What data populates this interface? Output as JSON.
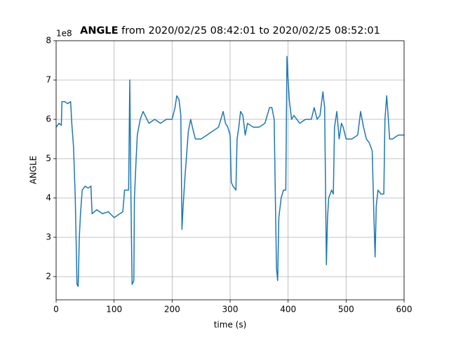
{
  "chart_data": {
    "type": "line",
    "title_emphasis": "ANGLE",
    "title": "from 2020/02/25 08:42:01 to 2020/02/25 08:52:01",
    "xlabel": "time (s)",
    "ylabel": "ANGLE",
    "y_offset_label": "1e8",
    "x": [
      0,
      5,
      9,
      10,
      15,
      20,
      25,
      27,
      30,
      33,
      36,
      38,
      40,
      42,
      45,
      50,
      55,
      60,
      62,
      70,
      80,
      90,
      100,
      110,
      115,
      118,
      125,
      127,
      129,
      131,
      134,
      135,
      138,
      140,
      145,
      150,
      160,
      170,
      180,
      190,
      200,
      205,
      208,
      212,
      215,
      217,
      219,
      222,
      225,
      228,
      232,
      235,
      240,
      250,
      260,
      270,
      280,
      288,
      292,
      296,
      300,
      302,
      305,
      310,
      312,
      315,
      318,
      322,
      326,
      330,
      340,
      350,
      360,
      368,
      372,
      376,
      378,
      380,
      382,
      384,
      388,
      392,
      396,
      398,
      400,
      402,
      406,
      410,
      415,
      420,
      430,
      440,
      445,
      450,
      455,
      460,
      463,
      466,
      468,
      470,
      475,
      478,
      480,
      484,
      488,
      492,
      495,
      500,
      510,
      520,
      525,
      530,
      535,
      540,
      545,
      548,
      550,
      552,
      555,
      560,
      565,
      567,
      570,
      572,
      575,
      580,
      590,
      600
    ],
    "series": [
      {
        "name": "ANGLE",
        "color": "#1f77b4",
        "values": [
          5.8,
          5.9,
          5.85,
          6.45,
          6.45,
          6.4,
          6.45,
          5.9,
          5.3,
          4.0,
          1.8,
          1.75,
          3.0,
          3.6,
          4.2,
          4.3,
          4.25,
          4.3,
          3.6,
          3.7,
          3.6,
          3.65,
          3.5,
          3.6,
          3.65,
          4.2,
          4.2,
          7.0,
          4.0,
          1.8,
          1.9,
          4.0,
          5.0,
          5.6,
          6.0,
          6.2,
          5.9,
          6.0,
          5.9,
          6.0,
          6.0,
          6.3,
          6.6,
          6.5,
          6.1,
          3.2,
          3.8,
          4.5,
          5.1,
          5.7,
          6.0,
          5.8,
          5.5,
          5.5,
          5.6,
          5.7,
          5.8,
          6.2,
          5.9,
          5.8,
          5.6,
          4.4,
          4.3,
          4.2,
          5.5,
          5.8,
          6.2,
          6.1,
          5.6,
          5.9,
          5.8,
          5.8,
          5.9,
          6.3,
          6.3,
          6.0,
          4.0,
          2.2,
          1.9,
          3.5,
          4.0,
          4.2,
          4.2,
          7.6,
          7.0,
          6.5,
          6.0,
          6.1,
          6.0,
          5.9,
          6.0,
          6.0,
          6.3,
          6.0,
          6.1,
          6.7,
          6.3,
          2.3,
          3.5,
          4.0,
          4.2,
          4.1,
          5.8,
          6.2,
          5.5,
          5.9,
          5.8,
          5.5,
          5.5,
          5.6,
          6.2,
          5.8,
          5.5,
          5.4,
          5.2,
          3.5,
          2.5,
          3.8,
          4.2,
          4.1,
          4.1,
          6.0,
          6.6,
          6.2,
          5.5,
          5.5,
          5.6,
          5.6
        ]
      }
    ],
    "xlim": [
      0,
      600
    ],
    "xticks": [
      0,
      100,
      200,
      300,
      400,
      500,
      600
    ],
    "ylim": [
      1.41,
      8
    ],
    "yticks": [
      2,
      3,
      4,
      5,
      6,
      7,
      8
    ],
    "grid": true
  }
}
